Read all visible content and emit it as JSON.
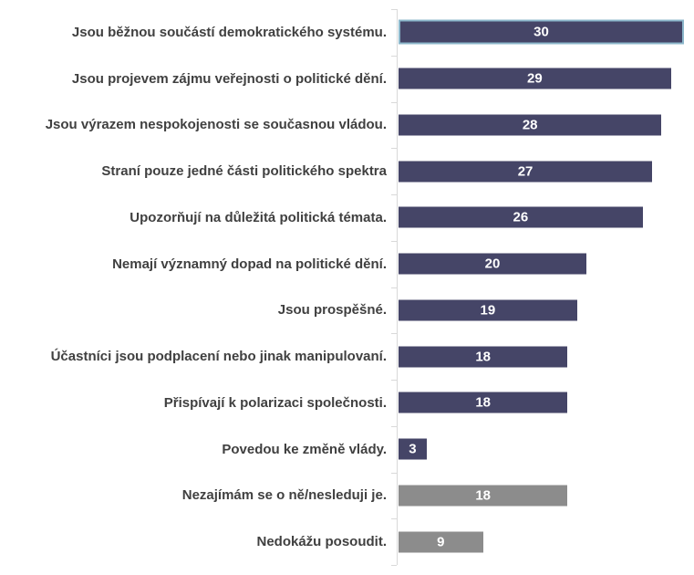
{
  "chart_data": {
    "type": "bar",
    "orientation": "horizontal",
    "title": "",
    "xlabel": "",
    "ylabel": "",
    "grid": false,
    "legend": false,
    "xlim": [
      0,
      30
    ],
    "highlighted_index": 0,
    "value_labels": "inside-center",
    "categories": [
      "Jsou běžnou součástí demokratického systému.",
      "Jsou projevem zájmu veřejnosti o politické dění.",
      "Jsou výrazem nespokojenosti se současnou vládou.",
      "Straní pouze jedné části politického spektra",
      "Upozorňují na důležitá politická témata.",
      "Nemají významný dopad na politické dění.",
      "Jsou prospěšné.",
      "Účastníci jsou podplacení nebo jinak manipulovaní.",
      "Přispívají k polarizaci společnosti.",
      "Povedou ke změně vlády.",
      "Nezajímám se o ně/nesleduji je.",
      "Nedokážu posoudit."
    ],
    "values": [
      30,
      29,
      28,
      27,
      26,
      20,
      19,
      18,
      18,
      3,
      18,
      9
    ],
    "bar_color_keys": [
      "primary",
      "primary",
      "primary",
      "primary",
      "primary",
      "primary",
      "primary",
      "primary",
      "primary",
      "primary",
      "secondary",
      "secondary"
    ],
    "colors": {
      "primary": "#454567",
      "secondary": "#8C8C8C",
      "highlight_border": "#8CB7CB",
      "axis": "#D9D9D9",
      "label_text": "#404040",
      "value_text": "#FFFFFF"
    }
  }
}
